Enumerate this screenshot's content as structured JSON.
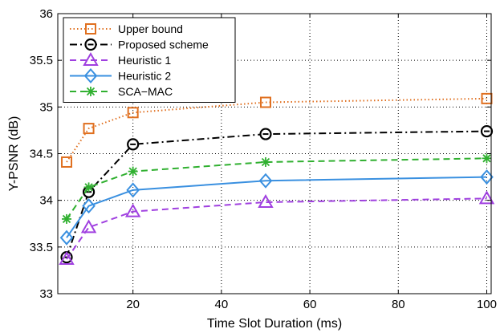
{
  "chart_data": {
    "type": "line",
    "title": "",
    "xlabel": "Time Slot Duration (ms)",
    "ylabel": "Y-PSNR (dB)",
    "xlim": [
      3,
      101
    ],
    "ylim": [
      33,
      36
    ],
    "xticks": [
      20,
      40,
      60,
      80,
      100
    ],
    "yticks": [
      33,
      33.5,
      34,
      34.5,
      35,
      35.5,
      36
    ],
    "grid": true,
    "legend_position": "top-left",
    "x": [
      5,
      10,
      20,
      50,
      100
    ],
    "series": [
      {
        "name": "Upper bound",
        "color": "#e07020",
        "dash": "dotted",
        "marker": "square",
        "values": [
          34.41,
          34.77,
          34.94,
          35.05,
          35.09
        ]
      },
      {
        "name": "Proposed scheme",
        "color": "#000000",
        "dash": "dashdot",
        "marker": "circle-dot",
        "values": [
          33.39,
          34.09,
          34.6,
          34.71,
          34.74
        ]
      },
      {
        "name": "Heuristic 1",
        "color": "#a040e0",
        "dash": "dashed",
        "marker": "triangle",
        "values": [
          33.37,
          33.71,
          33.88,
          33.98,
          34.02
        ]
      },
      {
        "name": "Heuristic 2",
        "color": "#3a90e0",
        "dash": "solid",
        "marker": "diamond",
        "values": [
          33.6,
          33.94,
          34.11,
          34.21,
          34.25
        ]
      },
      {
        "name": "SCA−MAC",
        "color": "#30b030",
        "dash": "dashed",
        "marker": "asterisk",
        "values": [
          33.8,
          34.14,
          34.31,
          34.41,
          34.45
        ]
      }
    ]
  }
}
